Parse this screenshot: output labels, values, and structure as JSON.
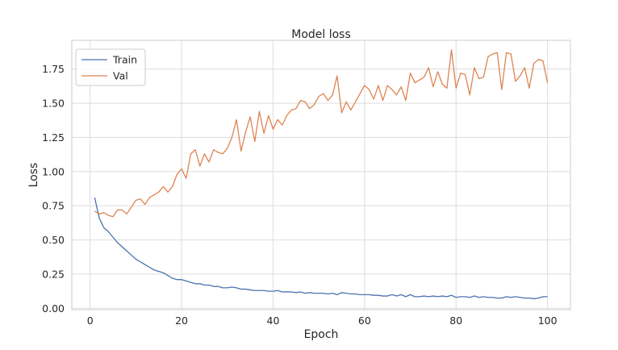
{
  "chart_data": {
    "type": "line",
    "title": "Model loss",
    "xlabel": "Epoch",
    "ylabel": "Loss",
    "xlim": [
      -4,
      105
    ],
    "ylim": [
      -0.01,
      1.96
    ],
    "xticks": [
      0,
      20,
      40,
      60,
      80,
      100
    ],
    "yticks": [
      0.0,
      0.25,
      0.5,
      0.75,
      1.0,
      1.25,
      1.5,
      1.75
    ],
    "xtick_labels": [
      "0",
      "20",
      "40",
      "60",
      "80",
      "100"
    ],
    "ytick_labels": [
      "0.00",
      "0.25",
      "0.50",
      "0.75",
      "1.00",
      "1.25",
      "1.50",
      "1.75"
    ],
    "grid": true,
    "legend_position": "top-left",
    "series": [
      {
        "name": "Train",
        "color": "#4c72b0",
        "x": [
          1,
          2,
          3,
          4,
          5,
          6,
          7,
          8,
          9,
          10,
          11,
          12,
          13,
          14,
          15,
          16,
          17,
          18,
          19,
          20,
          21,
          22,
          23,
          24,
          25,
          26,
          27,
          28,
          29,
          30,
          31,
          32,
          33,
          34,
          35,
          36,
          37,
          38,
          39,
          40,
          41,
          42,
          43,
          44,
          45,
          46,
          47,
          48,
          49,
          50,
          51,
          52,
          53,
          54,
          55,
          56,
          57,
          58,
          59,
          60,
          61,
          62,
          63,
          64,
          65,
          66,
          67,
          68,
          69,
          70,
          71,
          72,
          73,
          74,
          75,
          76,
          77,
          78,
          79,
          80,
          81,
          82,
          83,
          84,
          85,
          86,
          87,
          88,
          89,
          90,
          91,
          92,
          93,
          94,
          95,
          96,
          97,
          98,
          99,
          100
        ],
        "values": [
          0.81,
          0.66,
          0.59,
          0.56,
          0.52,
          0.48,
          0.45,
          0.42,
          0.39,
          0.36,
          0.34,
          0.32,
          0.3,
          0.28,
          0.27,
          0.26,
          0.24,
          0.22,
          0.21,
          0.21,
          0.2,
          0.19,
          0.18,
          0.18,
          0.17,
          0.17,
          0.16,
          0.16,
          0.15,
          0.15,
          0.155,
          0.15,
          0.14,
          0.14,
          0.135,
          0.13,
          0.13,
          0.13,
          0.125,
          0.125,
          0.13,
          0.12,
          0.12,
          0.12,
          0.115,
          0.12,
          0.11,
          0.115,
          0.11,
          0.11,
          0.11,
          0.105,
          0.11,
          0.1,
          0.115,
          0.11,
          0.105,
          0.105,
          0.1,
          0.1,
          0.1,
          0.095,
          0.095,
          0.09,
          0.09,
          0.1,
          0.09,
          0.1,
          0.085,
          0.1,
          0.085,
          0.085,
          0.09,
          0.085,
          0.09,
          0.085,
          0.09,
          0.085,
          0.095,
          0.08,
          0.085,
          0.085,
          0.08,
          0.09,
          0.08,
          0.085,
          0.08,
          0.08,
          0.075,
          0.075,
          0.085,
          0.08,
          0.085,
          0.08,
          0.075,
          0.075,
          0.07,
          0.075,
          0.085,
          0.085
        ]
      },
      {
        "name": "Val",
        "color": "#dd8452",
        "x": [
          1,
          2,
          3,
          4,
          5,
          6,
          7,
          8,
          9,
          10,
          11,
          12,
          13,
          14,
          15,
          16,
          17,
          18,
          19,
          20,
          21,
          22,
          23,
          24,
          25,
          26,
          27,
          28,
          29,
          30,
          31,
          32,
          33,
          34,
          35,
          36,
          37,
          38,
          39,
          40,
          41,
          42,
          43,
          44,
          45,
          46,
          47,
          48,
          49,
          50,
          51,
          52,
          53,
          54,
          55,
          56,
          57,
          58,
          59,
          60,
          61,
          62,
          63,
          64,
          65,
          66,
          67,
          68,
          69,
          70,
          71,
          72,
          73,
          74,
          75,
          76,
          77,
          78,
          79,
          80,
          81,
          82,
          83,
          84,
          85,
          86,
          87,
          88,
          89,
          90,
          91,
          92,
          93,
          94,
          95,
          96,
          97,
          98,
          99,
          100
        ],
        "values": [
          0.71,
          0.69,
          0.7,
          0.68,
          0.67,
          0.72,
          0.72,
          0.69,
          0.74,
          0.79,
          0.8,
          0.76,
          0.81,
          0.83,
          0.85,
          0.89,
          0.85,
          0.89,
          0.98,
          1.02,
          0.95,
          1.13,
          1.16,
          1.04,
          1.13,
          1.07,
          1.16,
          1.14,
          1.13,
          1.17,
          1.25,
          1.38,
          1.15,
          1.29,
          1.4,
          1.22,
          1.44,
          1.28,
          1.41,
          1.31,
          1.38,
          1.34,
          1.41,
          1.45,
          1.46,
          1.52,
          1.51,
          1.46,
          1.49,
          1.55,
          1.57,
          1.52,
          1.56,
          1.7,
          1.43,
          1.51,
          1.45,
          1.51,
          1.57,
          1.63,
          1.6,
          1.53,
          1.63,
          1.52,
          1.63,
          1.6,
          1.56,
          1.62,
          1.52,
          1.72,
          1.65,
          1.67,
          1.69,
          1.76,
          1.62,
          1.73,
          1.64,
          1.61,
          1.89,
          1.61,
          1.72,
          1.71,
          1.56,
          1.76,
          1.68,
          1.69,
          1.84,
          1.86,
          1.87,
          1.6,
          1.87,
          1.86,
          1.66,
          1.7,
          1.76,
          1.61,
          1.79,
          1.82,
          1.81,
          1.65
        ]
      }
    ]
  }
}
